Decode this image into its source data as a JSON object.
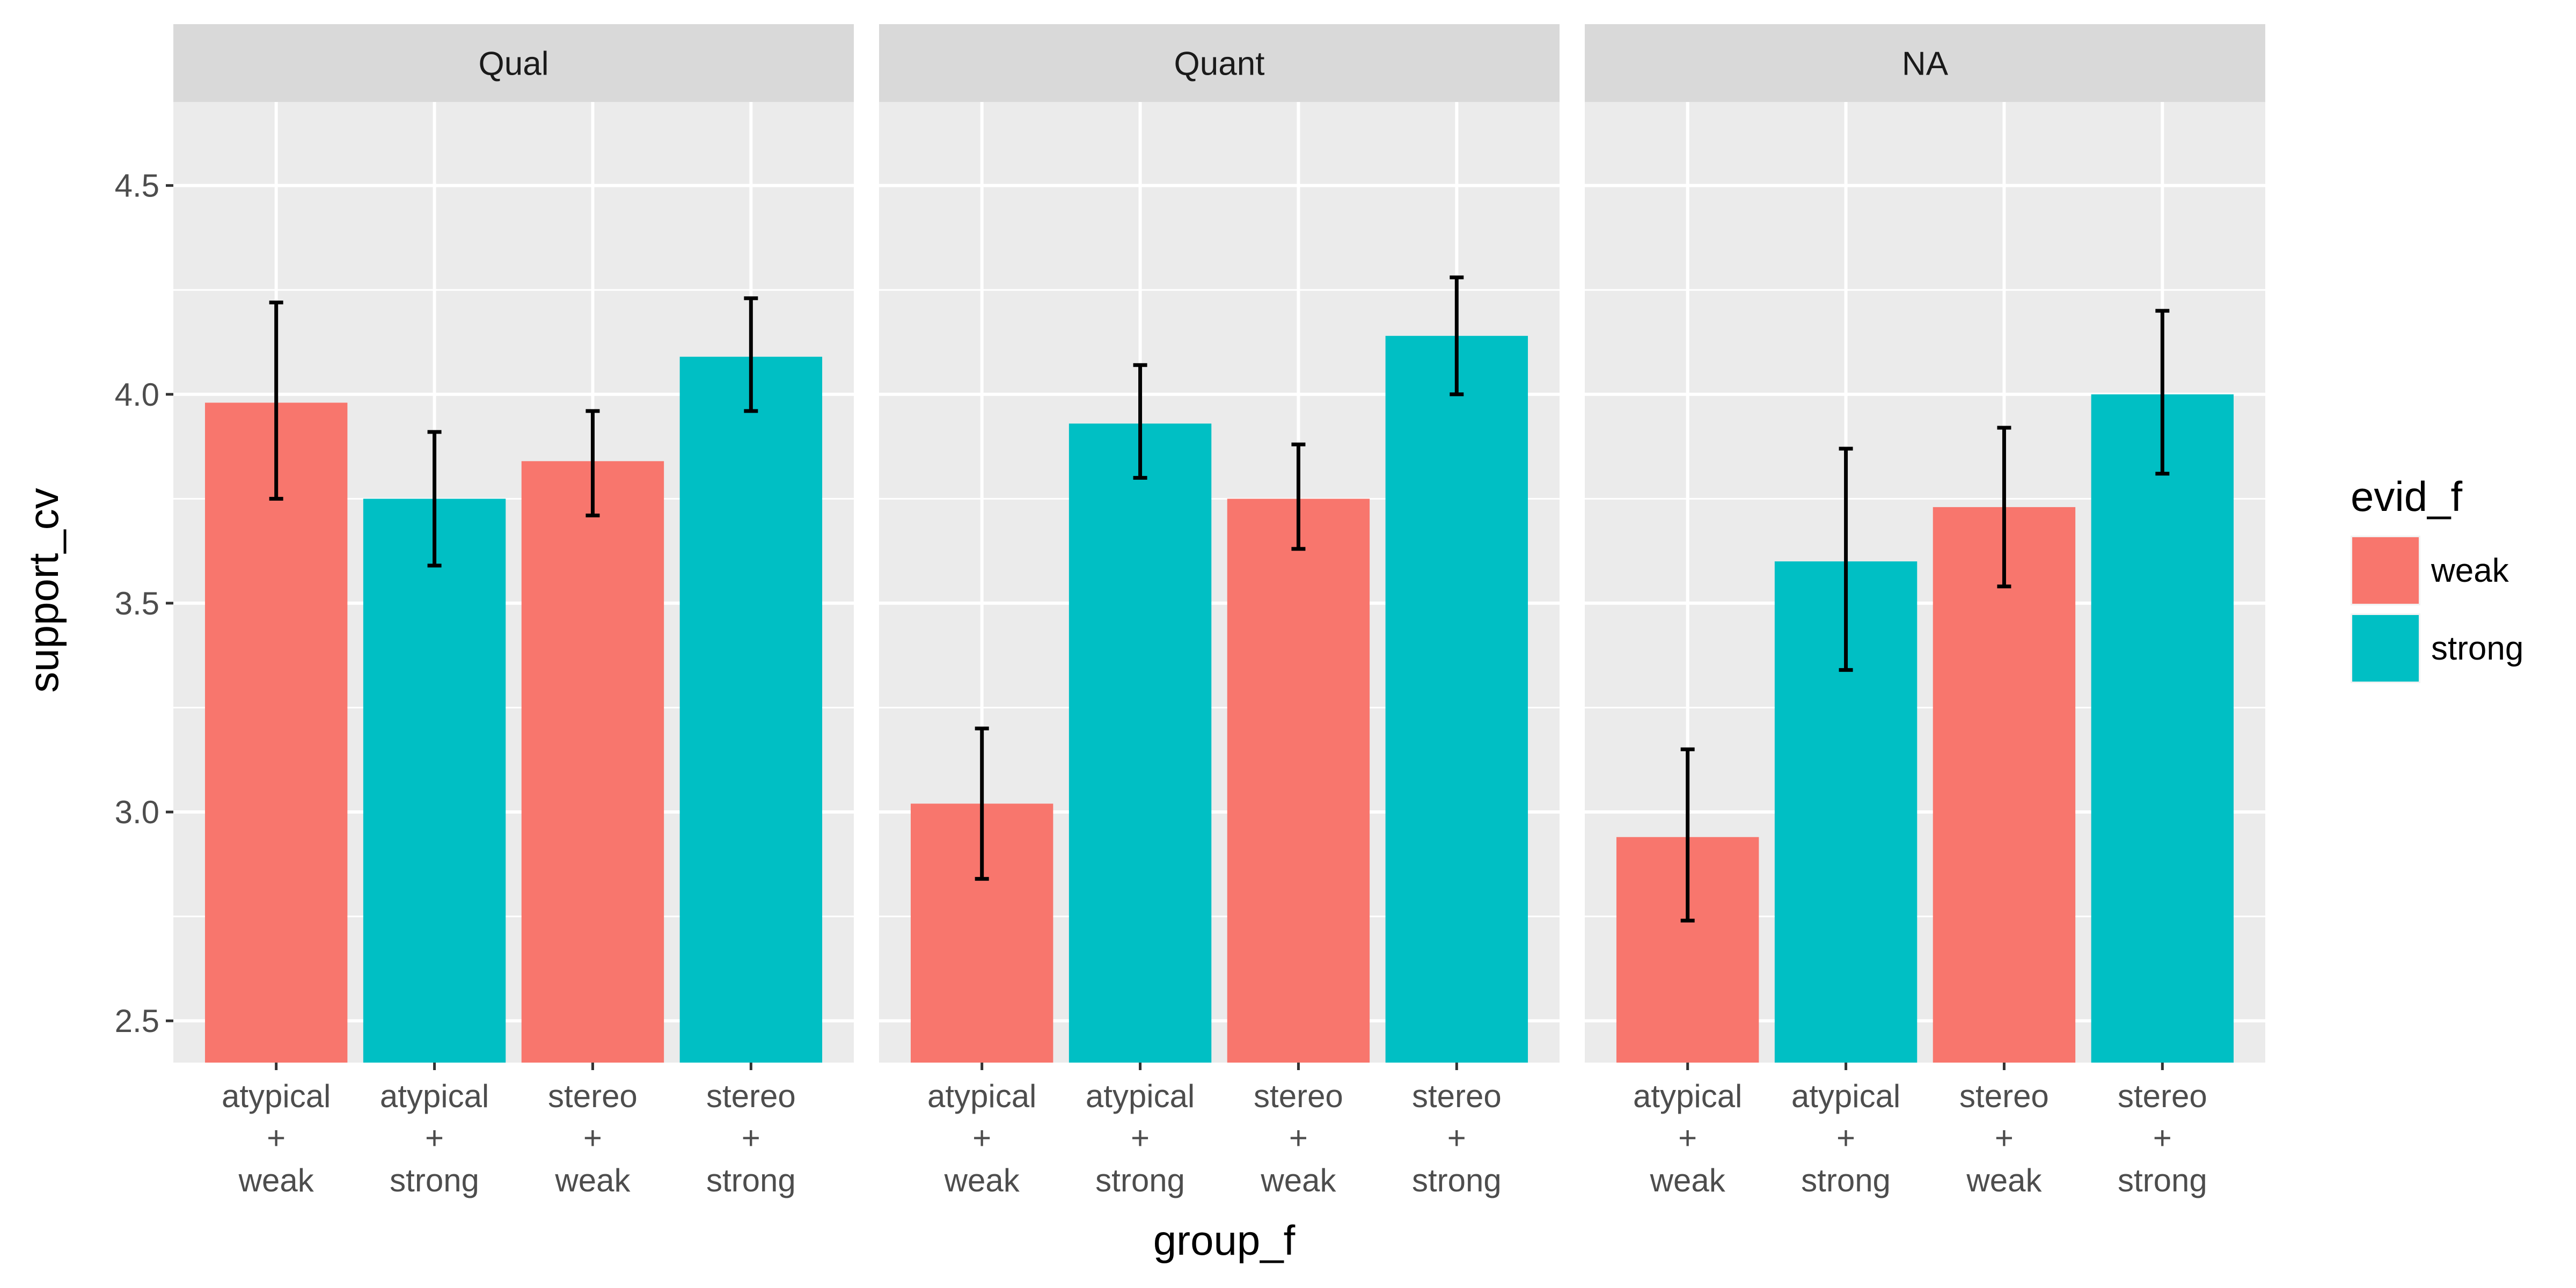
{
  "chart_data": {
    "type": "bar",
    "facet_variable": "",
    "xlabel": "group_f",
    "ylabel": "support_cv",
    "ylim": [
      2.4,
      4.7
    ],
    "y_ticks": [
      2.5,
      3.0,
      3.5,
      4.0,
      4.5
    ],
    "y_tick_labels": [
      "2.5",
      "3.0",
      "3.5",
      "4.0",
      "4.5"
    ],
    "categories": [
      {
        "line1": "atypical",
        "line2": "+",
        "line3": "weak"
      },
      {
        "line1": "atypical",
        "line2": "+",
        "line3": "strong"
      },
      {
        "line1": "stereo",
        "line2": "+",
        "line3": "weak"
      },
      {
        "line1": "stereo",
        "line2": "+",
        "line3": "strong"
      }
    ],
    "bar_fill_group": [
      "weak",
      "strong",
      "weak",
      "strong"
    ],
    "legend": {
      "title": "evid_f",
      "items": [
        {
          "label": "weak",
          "color": "#F8766D"
        },
        {
          "label": "strong",
          "color": "#00BFC4"
        }
      ],
      "position": "right"
    },
    "colors": {
      "weak": "#F8766D",
      "strong": "#00BFC4",
      "panel_bg": "#EBEBEB",
      "strip_bg": "#D9D9D9",
      "grid": "#FFFFFF"
    },
    "panels": [
      {
        "name": "Qual",
        "values": [
          3.98,
          3.75,
          3.84,
          4.09
        ],
        "err_low": [
          3.75,
          3.59,
          3.71,
          3.96
        ],
        "err_high": [
          4.22,
          3.91,
          3.96,
          4.23
        ]
      },
      {
        "name": "Quant",
        "values": [
          3.02,
          3.93,
          3.75,
          4.14
        ],
        "err_low": [
          2.84,
          3.8,
          3.63,
          4.0
        ],
        "err_high": [
          3.2,
          4.07,
          3.88,
          4.28
        ]
      },
      {
        "name": "NA",
        "values": [
          2.94,
          3.6,
          3.73,
          4.0
        ],
        "err_low": [
          2.74,
          3.34,
          3.54,
          3.81
        ],
        "err_high": [
          3.15,
          3.87,
          3.92,
          4.2
        ]
      }
    ],
    "grid": true
  }
}
